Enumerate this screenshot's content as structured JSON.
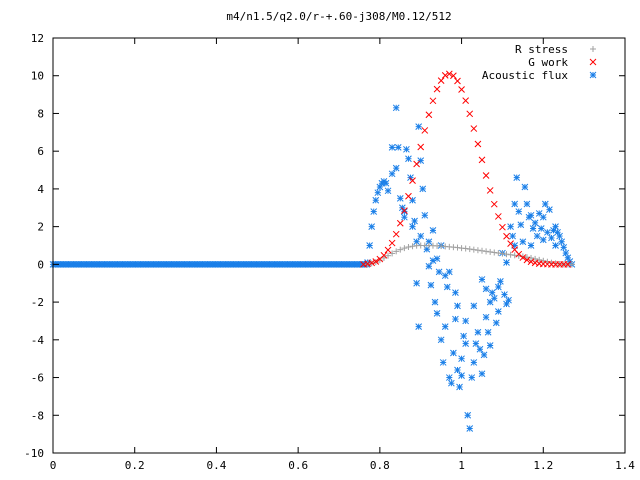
{
  "chart_data": {
    "type": "scatter",
    "title": "m4/n1.5/q2.0/r-+.60-j308/M0.12/512",
    "xlabel": "",
    "ylabel": "",
    "xlim": [
      0,
      1.4
    ],
    "ylim": [
      -10,
      12
    ],
    "x_ticks": [
      0,
      0.2,
      0.4,
      0.6,
      0.8,
      1,
      1.2,
      1.4
    ],
    "x_tick_labels": [
      "0",
      "0.2",
      "0.4",
      "0.6",
      "0.8",
      "1",
      "1.2",
      "1.4"
    ],
    "y_ticks": [
      -10,
      -8,
      -6,
      -4,
      -2,
      0,
      2,
      4,
      6,
      8,
      10,
      12
    ],
    "y_tick_labels": [
      "-10",
      "-8",
      "-6",
      "-4",
      "-2",
      "0",
      "2",
      "4",
      "6",
      "8",
      "10",
      "12"
    ],
    "grid": false,
    "legend_position": "top-right",
    "series": [
      {
        "name": "R stress",
        "marker": "plus",
        "color": "#a0a0a0",
        "points": [
          [
            0.77,
            0.0
          ],
          [
            0.78,
            0.05
          ],
          [
            0.79,
            0.12
          ],
          [
            0.8,
            0.22
          ],
          [
            0.81,
            0.34
          ],
          [
            0.82,
            0.46
          ],
          [
            0.83,
            0.58
          ],
          [
            0.84,
            0.69
          ],
          [
            0.85,
            0.78
          ],
          [
            0.86,
            0.86
          ],
          [
            0.87,
            0.92
          ],
          [
            0.88,
            0.96
          ],
          [
            0.89,
            0.99
          ],
          [
            0.9,
            1.0
          ],
          [
            0.91,
            1.0
          ],
          [
            0.92,
            1.0
          ],
          [
            0.93,
            0.99
          ],
          [
            0.94,
            0.98
          ],
          [
            0.95,
            0.97
          ],
          [
            0.96,
            0.95
          ],
          [
            0.97,
            0.93
          ],
          [
            0.98,
            0.91
          ],
          [
            0.99,
            0.89
          ],
          [
            1.0,
            0.86
          ],
          [
            1.01,
            0.84
          ],
          [
            1.02,
            0.81
          ],
          [
            1.03,
            0.78
          ],
          [
            1.04,
            0.75
          ],
          [
            1.05,
            0.72
          ],
          [
            1.06,
            0.69
          ],
          [
            1.07,
            0.66
          ],
          [
            1.08,
            0.63
          ],
          [
            1.09,
            0.6
          ],
          [
            1.1,
            0.57
          ],
          [
            1.11,
            0.54
          ],
          [
            1.12,
            0.51
          ],
          [
            1.13,
            0.48
          ],
          [
            1.14,
            0.45
          ],
          [
            1.15,
            0.42
          ],
          [
            1.16,
            0.38
          ],
          [
            1.17,
            0.34
          ],
          [
            1.18,
            0.29
          ],
          [
            1.19,
            0.24
          ],
          [
            1.2,
            0.19
          ],
          [
            1.21,
            0.14
          ],
          [
            1.22,
            0.09
          ],
          [
            1.23,
            0.05
          ],
          [
            1.24,
            0.02
          ],
          [
            1.25,
            0.0
          ],
          [
            1.26,
            0.0
          ],
          [
            1.27,
            0.0
          ]
        ]
      },
      {
        "name": "G work",
        "marker": "cross",
        "color": "#ff0000",
        "points": [
          [
            0.76,
            0.0
          ],
          [
            0.77,
            0.03
          ],
          [
            0.78,
            0.08
          ],
          [
            0.79,
            0.15
          ],
          [
            0.8,
            0.28
          ],
          [
            0.81,
            0.48
          ],
          [
            0.82,
            0.76
          ],
          [
            0.83,
            1.13
          ],
          [
            0.84,
            1.6
          ],
          [
            0.85,
            2.18
          ],
          [
            0.86,
            2.85
          ],
          [
            0.87,
            3.61
          ],
          [
            0.88,
            4.44
          ],
          [
            0.89,
            5.32
          ],
          [
            0.9,
            6.22
          ],
          [
            0.91,
            7.1
          ],
          [
            0.92,
            7.93
          ],
          [
            0.93,
            8.67
          ],
          [
            0.94,
            9.29
          ],
          [
            0.95,
            9.74
          ],
          [
            0.96,
            10.02
          ],
          [
            0.97,
            10.1
          ],
          [
            0.98,
            10.0
          ],
          [
            0.99,
            9.72
          ],
          [
            1.0,
            9.27
          ],
          [
            1.01,
            8.68
          ],
          [
            1.02,
            7.98
          ],
          [
            1.03,
            7.2
          ],
          [
            1.04,
            6.38
          ],
          [
            1.05,
            5.54
          ],
          [
            1.06,
            4.71
          ],
          [
            1.07,
            3.92
          ],
          [
            1.08,
            3.19
          ],
          [
            1.09,
            2.54
          ],
          [
            1.1,
            1.97
          ],
          [
            1.11,
            1.49
          ],
          [
            1.12,
            1.1
          ],
          [
            1.13,
            0.78
          ],
          [
            1.14,
            0.54
          ],
          [
            1.15,
            0.36
          ],
          [
            1.16,
            0.23
          ],
          [
            1.17,
            0.14
          ],
          [
            1.18,
            0.08
          ],
          [
            1.19,
            0.04
          ],
          [
            1.2,
            0.02
          ],
          [
            1.21,
            0.01
          ],
          [
            1.22,
            0.0
          ],
          [
            1.23,
            0.0
          ],
          [
            1.24,
            0.0
          ],
          [
            1.25,
            0.0
          ],
          [
            1.26,
            0.0
          ]
        ]
      },
      {
        "name": "Acoustic flux",
        "marker": "star",
        "color": "#1a7fe8",
        "baseline_x": [
          0,
          0.77
        ],
        "baseline_y": 0,
        "points": [
          [
            0.77,
            0.1
          ],
          [
            0.775,
            1.0
          ],
          [
            0.78,
            2.0
          ],
          [
            0.785,
            2.8
          ],
          [
            0.79,
            3.4
          ],
          [
            0.795,
            3.8
          ],
          [
            0.8,
            4.1
          ],
          [
            0.805,
            4.3
          ],
          [
            0.81,
            4.4
          ],
          [
            0.815,
            4.3
          ],
          [
            0.82,
            3.9
          ],
          [
            0.83,
            4.8
          ],
          [
            0.84,
            8.3
          ],
          [
            0.845,
            6.2
          ],
          [
            0.85,
            3.5
          ],
          [
            0.855,
            3.0
          ],
          [
            0.86,
            2.5
          ],
          [
            0.865,
            6.1
          ],
          [
            0.87,
            5.6
          ],
          [
            0.875,
            4.6
          ],
          [
            0.88,
            3.4
          ],
          [
            0.885,
            2.3
          ],
          [
            0.89,
            1.2
          ],
          [
            0.895,
            7.3
          ],
          [
            0.9,
            5.5
          ],
          [
            0.905,
            4.0
          ],
          [
            0.91,
            2.6
          ],
          [
            0.915,
            0.8
          ],
          [
            0.92,
            -0.1
          ],
          [
            0.925,
            -1.1
          ],
          [
            0.93,
            0.2
          ],
          [
            0.935,
            -2.0
          ],
          [
            0.94,
            -2.6
          ],
          [
            0.945,
            -0.4
          ],
          [
            0.95,
            -4.0
          ],
          [
            0.955,
            -5.2
          ],
          [
            0.96,
            -3.3
          ],
          [
            0.965,
            -1.2
          ],
          [
            0.97,
            -6.0
          ],
          [
            0.975,
            -6.3
          ],
          [
            0.98,
            -4.7
          ],
          [
            0.985,
            -2.9
          ],
          [
            0.99,
            -5.6
          ],
          [
            0.995,
            -6.5
          ],
          [
            1.0,
            -5.0
          ],
          [
            1.005,
            -3.8
          ],
          [
            1.01,
            -3.0
          ],
          [
            1.015,
            -8.0
          ],
          [
            1.02,
            -8.7
          ],
          [
            1.025,
            -6.0
          ],
          [
            1.03,
            -5.2
          ],
          [
            1.035,
            -4.2
          ],
          [
            1.04,
            -3.6
          ],
          [
            1.045,
            -4.5
          ],
          [
            1.05,
            -5.8
          ],
          [
            1.055,
            -4.8
          ],
          [
            1.06,
            -2.8
          ],
          [
            1.065,
            -3.6
          ],
          [
            1.07,
            -4.3
          ],
          [
            1.075,
            -1.5
          ],
          [
            1.08,
            -1.8
          ],
          [
            1.085,
            -3.1
          ],
          [
            1.09,
            -2.5
          ],
          [
            1.095,
            -0.9
          ],
          [
            1.1,
            0.6
          ],
          [
            1.105,
            -1.6
          ],
          [
            1.11,
            0.1
          ],
          [
            1.115,
            -1.9
          ],
          [
            1.12,
            2.0
          ],
          [
            1.125,
            1.5
          ],
          [
            1.13,
            3.2
          ],
          [
            1.135,
            4.6
          ],
          [
            1.14,
            2.8
          ],
          [
            1.145,
            2.1
          ],
          [
            1.15,
            1.2
          ],
          [
            1.155,
            4.1
          ],
          [
            1.16,
            3.2
          ],
          [
            1.165,
            2.5
          ],
          [
            1.17,
            1.0
          ],
          [
            1.175,
            1.9
          ],
          [
            1.18,
            2.2
          ],
          [
            1.185,
            1.5
          ],
          [
            1.19,
            2.7
          ],
          [
            1.195,
            1.9
          ],
          [
            1.2,
            2.5
          ],
          [
            1.205,
            3.2
          ],
          [
            1.21,
            1.7
          ],
          [
            1.215,
            2.9
          ],
          [
            1.22,
            1.4
          ],
          [
            1.225,
            1.8
          ],
          [
            1.23,
            2.0
          ],
          [
            1.235,
            1.7
          ],
          [
            1.24,
            1.5
          ],
          [
            1.245,
            1.2
          ],
          [
            1.25,
            0.9
          ],
          [
            1.255,
            0.6
          ],
          [
            1.26,
            0.35
          ],
          [
            1.265,
            0.15
          ],
          [
            1.27,
            0.0
          ],
          [
            0.93,
            1.8
          ],
          [
            0.95,
            1.0
          ],
          [
            0.97,
            -0.4
          ],
          [
            0.99,
            -2.2
          ],
          [
            1.01,
            -4.2
          ],
          [
            1.03,
            -2.2
          ],
          [
            0.985,
            -1.5
          ],
          [
            0.96,
            -0.6
          ],
          [
            1.05,
            -0.8
          ],
          [
            1.07,
            -2.0
          ],
          [
            0.9,
            1.5
          ],
          [
            0.88,
            2.0
          ],
          [
            0.86,
            2.8
          ],
          [
            1.09,
            -1.2
          ],
          [
            1.13,
            1.0
          ],
          [
            1.17,
            2.6
          ],
          [
            1.2,
            1.3
          ],
          [
            1.23,
            1.0
          ],
          [
            0.83,
            6.2
          ],
          [
            0.84,
            5.1
          ],
          [
            0.89,
            -1.0
          ],
          [
            0.895,
            -3.3
          ],
          [
            0.92,
            1.2
          ],
          [
            0.94,
            0.3
          ],
          [
            1.0,
            -5.9
          ],
          [
            1.06,
            -1.3
          ],
          [
            1.11,
            -2.1
          ]
        ]
      }
    ]
  }
}
